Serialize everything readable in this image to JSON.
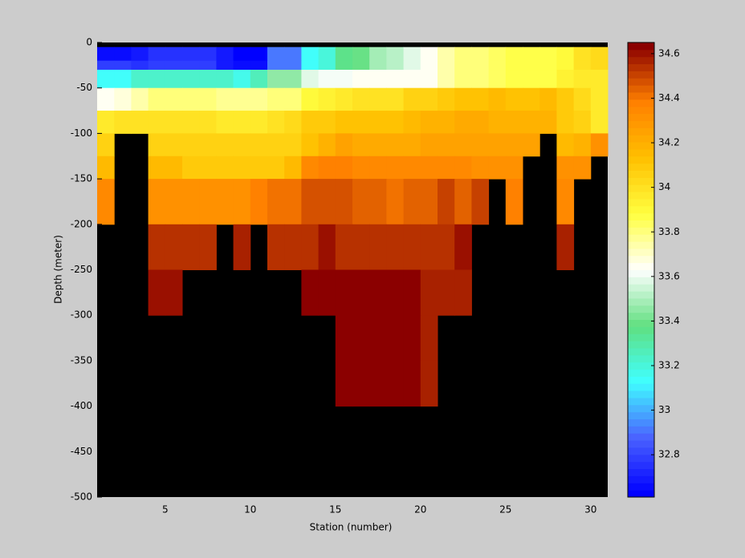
{
  "chart_data": {
    "type": "heatmap",
    "xlabel": "Station (number)",
    "ylabel": "Depth (meter)",
    "x": [
      1,
      2,
      3,
      4,
      5,
      6,
      7,
      8,
      9,
      10,
      11,
      12,
      13,
      14,
      15,
      16,
      17,
      18,
      19,
      20,
      21,
      22,
      23,
      24,
      25,
      26,
      27,
      28,
      29,
      30,
      31
    ],
    "y": [
      -5,
      -20,
      -30,
      -50,
      -75,
      -100,
      -125,
      -150,
      -200,
      -250,
      -300,
      -350,
      -400
    ],
    "z": [
      [
        32.65,
        32.65,
        32.7,
        32.75,
        32.75,
        32.75,
        32.75,
        32.7,
        32.63,
        32.62,
        32.9,
        32.9,
        33.15,
        33.2,
        33.35,
        33.4,
        33.5,
        33.53,
        33.58,
        33.65,
        33.75,
        33.8,
        33.82,
        33.85,
        33.87,
        33.87,
        33.87,
        33.9,
        34.0,
        34.02
      ],
      [
        32.78,
        32.78,
        32.75,
        32.78,
        32.78,
        32.78,
        32.78,
        32.7,
        32.66,
        32.66,
        32.9,
        32.9,
        33.15,
        33.2,
        33.35,
        33.4,
        33.5,
        33.53,
        33.58,
        33.65,
        33.75,
        33.8,
        33.82,
        33.85,
        33.87,
        33.87,
        33.87,
        33.9,
        34.0,
        34.02
      ],
      [
        33.15,
        33.15,
        33.22,
        33.22,
        33.22,
        33.22,
        33.22,
        33.22,
        33.18,
        33.25,
        33.45,
        33.45,
        33.58,
        33.6,
        33.62,
        33.65,
        33.65,
        33.66,
        33.66,
        33.66,
        33.75,
        33.8,
        33.8,
        33.85,
        33.88,
        33.88,
        33.88,
        33.92,
        33.95,
        33.95
      ],
      [
        33.65,
        33.68,
        33.75,
        33.8,
        33.8,
        33.8,
        33.8,
        33.78,
        33.78,
        33.78,
        33.82,
        33.82,
        33.9,
        33.92,
        33.95,
        34.0,
        34.0,
        34.0,
        34.05,
        34.05,
        34.1,
        34.12,
        34.12,
        34.15,
        34.12,
        34.12,
        34.15,
        34.08,
        34.02,
        33.95
      ],
      [
        33.95,
        34.0,
        34.0,
        34.0,
        34.0,
        34.0,
        34.0,
        33.98,
        33.98,
        33.98,
        34.0,
        34.02,
        34.08,
        34.1,
        34.12,
        34.12,
        34.12,
        34.12,
        34.15,
        34.18,
        34.2,
        34.22,
        34.22,
        34.2,
        34.2,
        34.18,
        34.18,
        34.1,
        34.05,
        33.98
      ],
      [
        34.05,
        null,
        null,
        34.05,
        34.05,
        34.05,
        34.05,
        34.05,
        34.05,
        34.07,
        34.07,
        34.07,
        34.12,
        34.18,
        34.25,
        34.22,
        34.22,
        34.22,
        34.22,
        34.25,
        34.25,
        34.25,
        34.25,
        34.25,
        34.25,
        34.25,
        null,
        34.15,
        34.2,
        34.3
      ],
      [
        34.15,
        null,
        null,
        34.15,
        34.15,
        34.1,
        34.1,
        34.1,
        34.1,
        34.1,
        34.1,
        34.15,
        34.35,
        34.38,
        34.38,
        34.35,
        34.35,
        34.35,
        34.35,
        34.35,
        34.35,
        34.35,
        34.32,
        34.32,
        34.32,
        null,
        null,
        34.3,
        34.3,
        null
      ],
      [
        34.35,
        null,
        null,
        34.32,
        34.32,
        34.32,
        34.32,
        34.32,
        34.32,
        34.38,
        34.4,
        34.4,
        34.48,
        34.48,
        34.48,
        34.43,
        34.43,
        34.4,
        34.43,
        34.43,
        34.5,
        34.45,
        34.52,
        null,
        34.38,
        null,
        null,
        34.35,
        null,
        null
      ],
      [
        null,
        null,
        null,
        34.55,
        34.55,
        34.55,
        34.55,
        null,
        34.57,
        null,
        34.55,
        34.55,
        34.55,
        34.6,
        34.55,
        34.55,
        34.55,
        34.55,
        34.55,
        34.55,
        34.55,
        34.6,
        null,
        null,
        null,
        null,
        null,
        34.57,
        null,
        null
      ],
      [
        null,
        null,
        null,
        34.6,
        34.6,
        null,
        null,
        null,
        null,
        null,
        null,
        null,
        34.62,
        34.62,
        34.62,
        34.62,
        34.62,
        34.62,
        34.62,
        34.58,
        34.58,
        34.58,
        null,
        null,
        null,
        null,
        null,
        null,
        null,
        null
      ],
      [
        null,
        null,
        null,
        null,
        null,
        null,
        null,
        null,
        null,
        null,
        null,
        null,
        null,
        null,
        34.62,
        34.62,
        34.62,
        34.62,
        34.62,
        34.58,
        null,
        null,
        null,
        null,
        null,
        null,
        null,
        null,
        null,
        null
      ],
      [
        null,
        null,
        null,
        null,
        null,
        null,
        null,
        null,
        null,
        null,
        null,
        null,
        null,
        null,
        34.62,
        34.62,
        34.62,
        34.62,
        34.62,
        34.58,
        null,
        null,
        null,
        null,
        null,
        null,
        null,
        null,
        null,
        null
      ]
    ],
    "xlim": [
      1,
      31
    ],
    "xticks": [
      5,
      10,
      15,
      20,
      25,
      30
    ],
    "ylim": [
      -500,
      0
    ],
    "yticks": [
      -500,
      -450,
      -400,
      -350,
      -300,
      -250,
      -200,
      -150,
      -100,
      -50,
      0
    ],
    "clim": [
      32.61,
      34.65
    ],
    "cticks": [
      32.8,
      33,
      33.2,
      33.4,
      33.6,
      33.8,
      34,
      34.2,
      34.4,
      34.6
    ],
    "colormap": [
      "#0000ff",
      "#4a62ff",
      "#40ffff",
      "#60e080",
      "#ffffff",
      "#ffff40",
      "#ffc000",
      "#ff8000",
      "#8b0000"
    ],
    "colormap_levels": 64,
    "background": "#000000",
    "grid": false
  }
}
